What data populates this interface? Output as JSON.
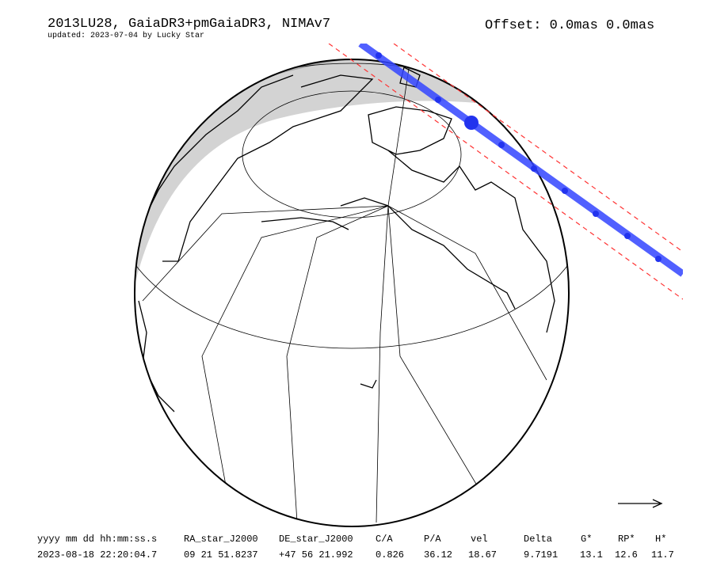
{
  "header": {
    "title": "2013LU28, GaiaDR3+pmGaiaDR3, NIMAv7",
    "updated": "updated: 2023-07-04 by Lucky Star",
    "offset": "Offset: 0.0mas 0.0mas"
  },
  "table": {
    "columns": [
      "yyyy mm dd hh:mm:ss.s",
      "RA_star_J2000",
      "DE_star_J2000",
      "C/A",
      "P/A",
      "vel",
      "Delta",
      "G*",
      "RP*",
      "H*"
    ],
    "rows": [
      [
        "2023-08-18 22:20:04.7",
        "09 21 51.8237",
        "+47 56 21.992",
        "0.826",
        "36.12",
        "18.67",
        "9.7191",
        "13.1",
        "12.6",
        "11.7"
      ]
    ]
  }
}
